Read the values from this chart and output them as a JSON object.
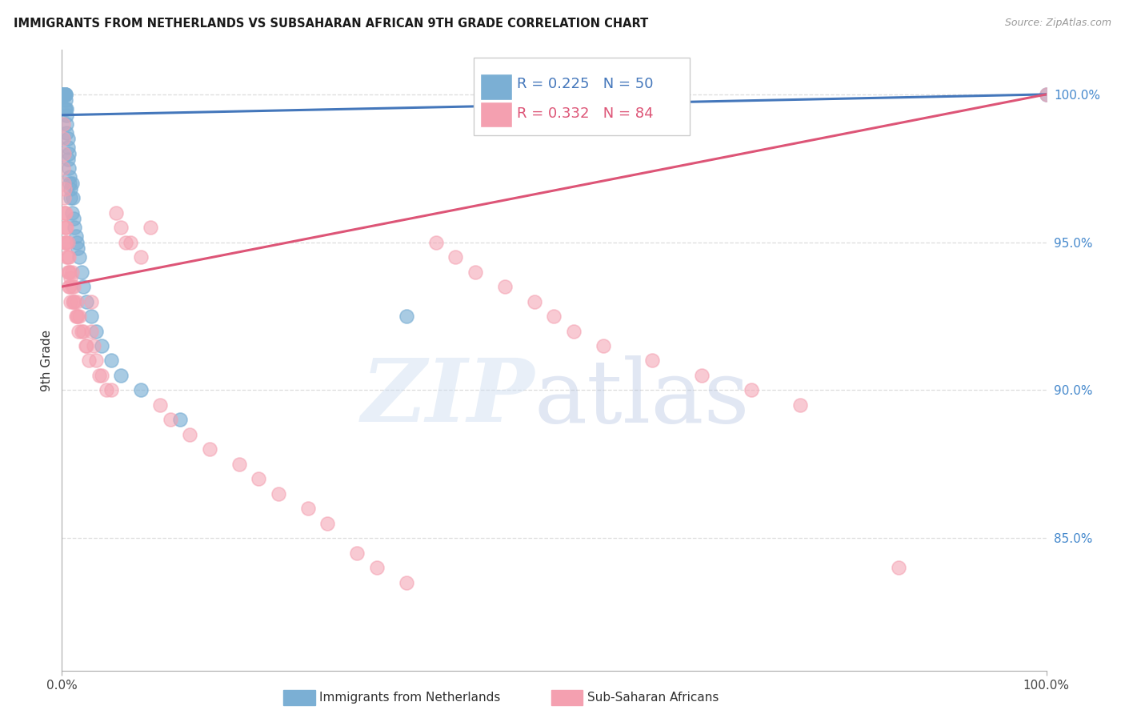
{
  "title": "IMMIGRANTS FROM NETHERLANDS VS SUBSAHARAN AFRICAN 9TH GRADE CORRELATION CHART",
  "source": "Source: ZipAtlas.com",
  "ylabel": "9th Grade",
  "blue_R": 0.225,
  "blue_N": 50,
  "pink_R": 0.332,
  "pink_N": 84,
  "blue_color": "#7bafd4",
  "pink_color": "#f4a0b0",
  "blue_line_color": "#4477bb",
  "pink_line_color": "#dd5577",
  "grid_color": "#dddddd",
  "xlim": [
    0.0,
    1.0
  ],
  "ylim": [
    80.5,
    101.5
  ],
  "y_ticks": [
    100.0,
    95.0,
    90.0,
    85.0
  ],
  "blue_trend_x0": 0.0,
  "blue_trend_y0": 99.3,
  "blue_trend_x1": 1.0,
  "blue_trend_y1": 100.0,
  "pink_trend_x0": 0.0,
  "pink_trend_y0": 93.5,
  "pink_trend_x1": 1.0,
  "pink_trend_y1": 100.0,
  "blue_points_x": [
    0.001,
    0.001,
    0.001,
    0.002,
    0.002,
    0.002,
    0.002,
    0.003,
    0.003,
    0.003,
    0.003,
    0.003,
    0.004,
    0.004,
    0.004,
    0.004,
    0.005,
    0.005,
    0.005,
    0.005,
    0.006,
    0.006,
    0.006,
    0.007,
    0.007,
    0.008,
    0.008,
    0.009,
    0.009,
    0.01,
    0.01,
    0.011,
    0.012,
    0.013,
    0.014,
    0.015,
    0.016,
    0.018,
    0.02,
    0.022,
    0.025,
    0.03,
    0.035,
    0.04,
    0.05,
    0.06,
    0.08,
    0.12,
    0.35,
    1.0
  ],
  "blue_points_y": [
    100.0,
    100.0,
    100.0,
    100.0,
    100.0,
    100.0,
    100.0,
    100.0,
    100.0,
    100.0,
    100.0,
    99.5,
    100.0,
    100.0,
    99.8,
    99.5,
    99.5,
    99.3,
    99.0,
    98.7,
    98.5,
    98.2,
    97.8,
    98.0,
    97.5,
    97.2,
    97.0,
    96.8,
    96.5,
    97.0,
    96.0,
    96.5,
    95.8,
    95.5,
    95.2,
    95.0,
    94.8,
    94.5,
    94.0,
    93.5,
    93.0,
    92.5,
    92.0,
    91.5,
    91.0,
    90.5,
    90.0,
    89.0,
    92.5,
    100.0
  ],
  "pink_points_x": [
    0.001,
    0.001,
    0.001,
    0.002,
    0.002,
    0.002,
    0.002,
    0.003,
    0.003,
    0.003,
    0.003,
    0.004,
    0.004,
    0.004,
    0.005,
    0.005,
    0.005,
    0.006,
    0.006,
    0.006,
    0.007,
    0.007,
    0.007,
    0.008,
    0.008,
    0.009,
    0.009,
    0.01,
    0.01,
    0.011,
    0.012,
    0.012,
    0.013,
    0.014,
    0.015,
    0.015,
    0.016,
    0.017,
    0.018,
    0.02,
    0.022,
    0.024,
    0.025,
    0.027,
    0.03,
    0.03,
    0.032,
    0.035,
    0.038,
    0.04,
    0.045,
    0.05,
    0.055,
    0.06,
    0.065,
    0.07,
    0.08,
    0.09,
    0.1,
    0.11,
    0.13,
    0.15,
    0.18,
    0.2,
    0.22,
    0.25,
    0.27,
    0.3,
    0.32,
    0.35,
    0.38,
    0.4,
    0.42,
    0.45,
    0.48,
    0.5,
    0.52,
    0.55,
    0.6,
    0.65,
    0.7,
    0.75,
    0.85,
    1.0
  ],
  "pink_points_y": [
    99.0,
    98.5,
    97.5,
    98.0,
    97.0,
    96.5,
    96.0,
    96.8,
    96.0,
    95.5,
    95.0,
    96.0,
    95.5,
    95.0,
    95.5,
    95.0,
    94.5,
    95.0,
    94.5,
    94.0,
    94.5,
    94.0,
    93.5,
    94.0,
    93.5,
    93.8,
    93.0,
    94.0,
    93.5,
    93.0,
    93.5,
    93.0,
    93.0,
    92.5,
    93.0,
    92.5,
    92.5,
    92.0,
    92.5,
    92.0,
    92.0,
    91.5,
    91.5,
    91.0,
    93.0,
    92.0,
    91.5,
    91.0,
    90.5,
    90.5,
    90.0,
    90.0,
    96.0,
    95.5,
    95.0,
    95.0,
    94.5,
    95.5,
    89.5,
    89.0,
    88.5,
    88.0,
    87.5,
    87.0,
    86.5,
    86.0,
    85.5,
    84.5,
    84.0,
    83.5,
    95.0,
    94.5,
    94.0,
    93.5,
    93.0,
    92.5,
    92.0,
    91.5,
    91.0,
    90.5,
    90.0,
    89.5,
    84.0,
    100.0
  ]
}
